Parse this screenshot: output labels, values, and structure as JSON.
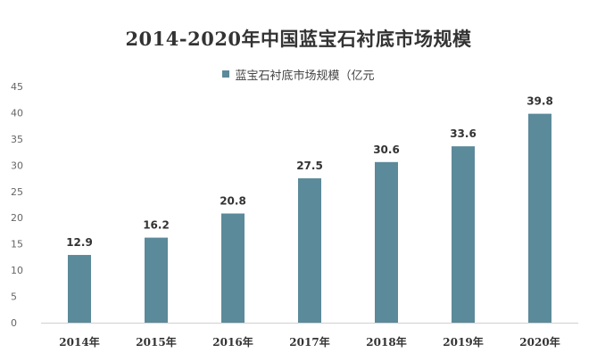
{
  "chart_data": {
    "type": "bar",
    "title": "2014-2020年中国蓝宝石衬底市场规模",
    "legend_position": "top-center",
    "categories": [
      "2014年",
      "2015年",
      "2016年",
      "2017年",
      "2018年",
      "2019年",
      "2020年"
    ],
    "series": [
      {
        "name": "蓝宝石衬底市场规模（亿元",
        "values": [
          12.9,
          16.2,
          20.8,
          27.5,
          30.6,
          33.6,
          39.8
        ],
        "color": "#5B8A9A"
      }
    ],
    "ylim": [
      0,
      45
    ],
    "yticks": [
      "0",
      "5",
      "10",
      "15",
      "20",
      "25",
      "30",
      "35",
      "40",
      "45"
    ],
    "grid": false
  }
}
